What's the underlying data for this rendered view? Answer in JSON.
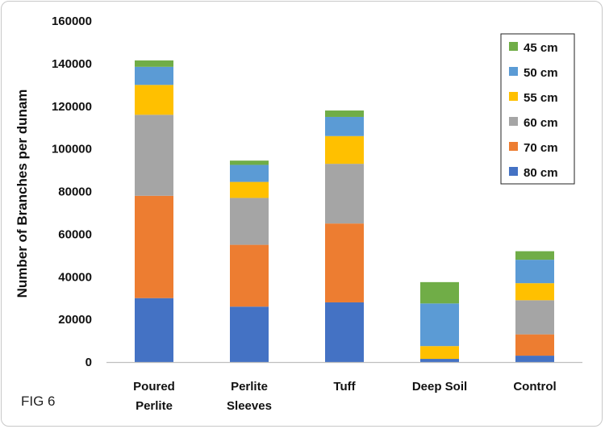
{
  "chart_data": {
    "type": "bar",
    "stacked": true,
    "categories": [
      [
        "Poured",
        "Perlite"
      ],
      [
        "Perlite",
        "Sleeves"
      ],
      [
        "Tuff"
      ],
      [
        "Deep Soil"
      ],
      [
        "Control"
      ]
    ],
    "ylabel": "Number of Branches per dunam",
    "ylim": [
      0,
      160000
    ],
    "yticks": [
      0,
      20000,
      40000,
      60000,
      80000,
      100000,
      120000,
      140000,
      160000
    ],
    "grid": false,
    "legend_position": "top-right",
    "series": [
      {
        "name": "80 cm",
        "color": "#4472C4",
        "values": [
          30000,
          26000,
          28000,
          1500,
          3000
        ]
      },
      {
        "name": "70 cm",
        "color": "#ED7D31",
        "values": [
          48000,
          29000,
          37000,
          0,
          10000
        ]
      },
      {
        "name": "60 cm",
        "color": "#A5A5A5",
        "values": [
          38000,
          22000,
          28000,
          0,
          16000
        ]
      },
      {
        "name": "55 cm",
        "color": "#FFC000",
        "values": [
          14000,
          7500,
          13000,
          6000,
          8000
        ]
      },
      {
        "name": "50 cm",
        "color": "#5B9BD5",
        "values": [
          8500,
          8000,
          9000,
          20000,
          11000
        ]
      },
      {
        "name": "45 cm",
        "color": "#70AD47",
        "values": [
          3000,
          2000,
          3000,
          10000,
          4000
        ]
      }
    ]
  },
  "figure_label": "FIG 6"
}
